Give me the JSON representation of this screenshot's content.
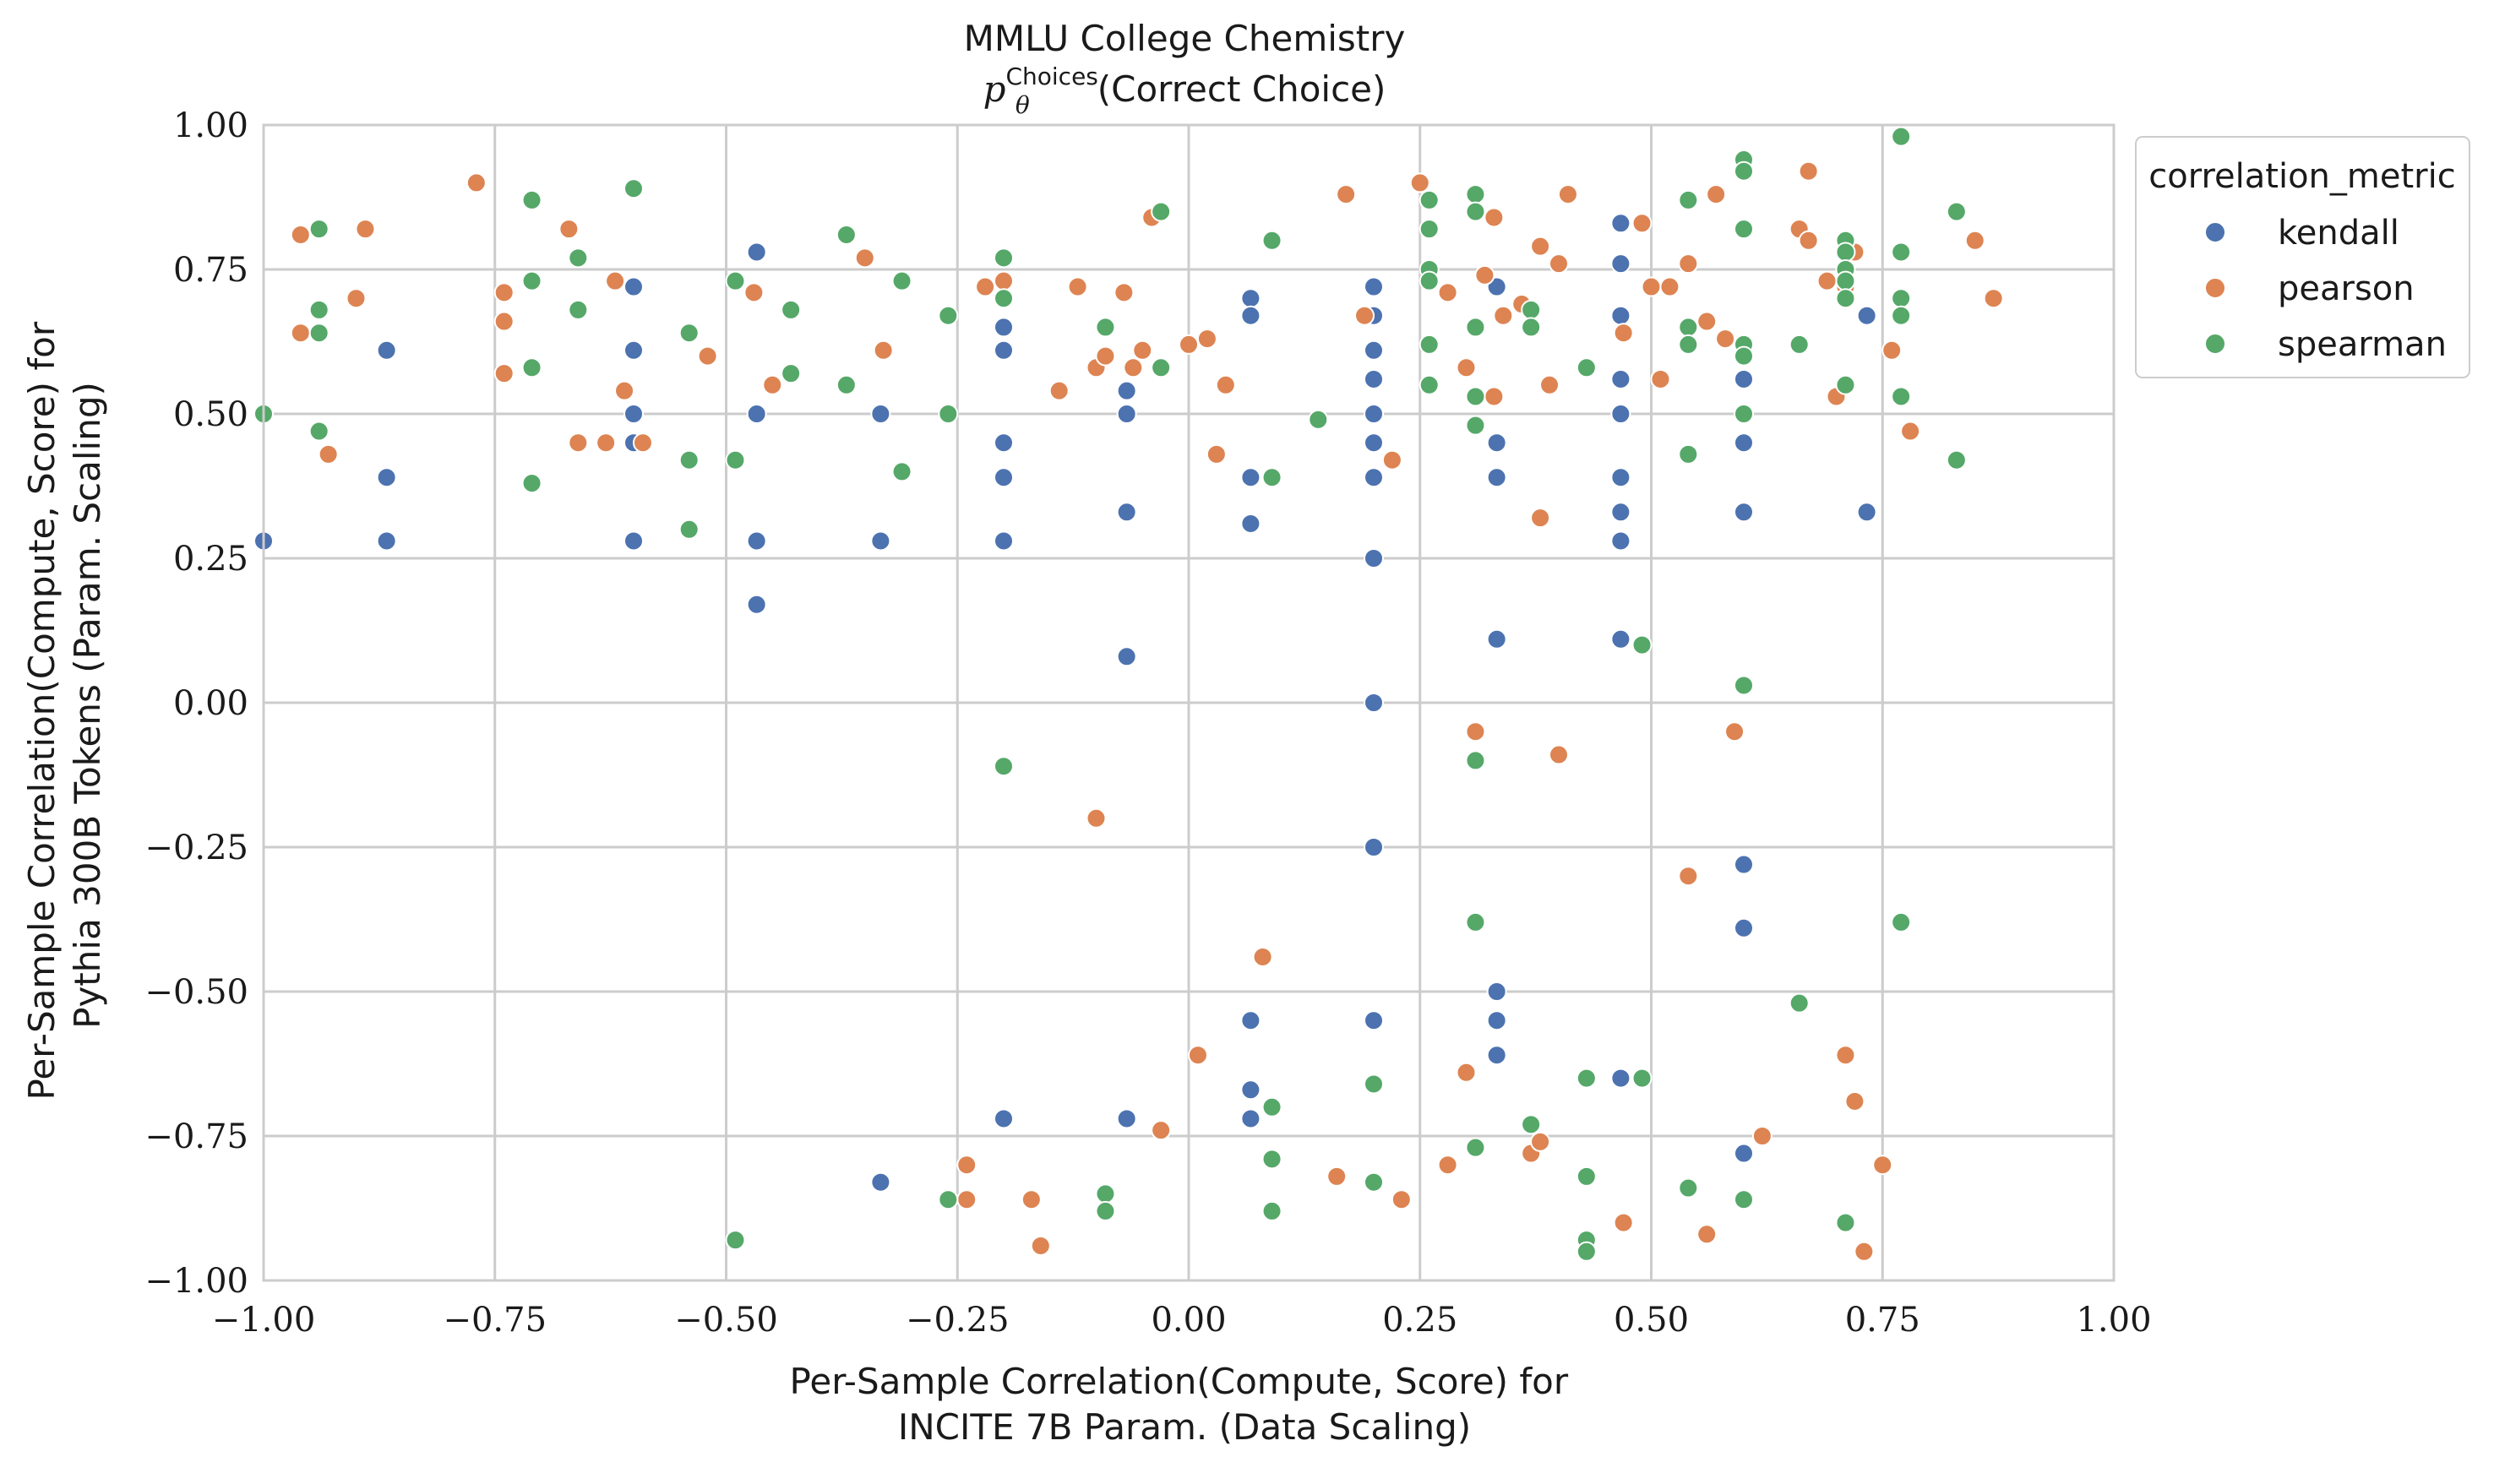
{
  "chart_data": {
    "type": "scatter",
    "title": "MMLU College Chemistry",
    "subtitle_prefix": "p",
    "subtitle_sub": "θ",
    "subtitle_sup": "Choices",
    "subtitle_text": "(Correct Choice)",
    "xlabel": [
      "Per-Sample Correlation(Compute, Score) for",
      "INCITE 7B Param. (Data Scaling)"
    ],
    "ylabel": [
      "Per-Sample Correlation(Compute, Score) for",
      "Pythia 300B Tokens (Param. Scaling)"
    ],
    "xlim": [
      -1.0,
      1.0
    ],
    "ylim": [
      -1.0,
      1.0
    ],
    "xticks": [
      -1.0,
      -0.75,
      -0.5,
      -0.25,
      0.0,
      0.25,
      0.5,
      0.75,
      1.0
    ],
    "yticks": [
      -1.0,
      -0.75,
      -0.5,
      -0.25,
      0.0,
      0.25,
      0.5,
      0.75,
      1.0
    ],
    "xtick_labels": [
      "−1.00",
      "−0.75",
      "−0.50",
      "−0.25",
      "0.00",
      "0.25",
      "0.50",
      "0.75",
      "1.00"
    ],
    "ytick_labels": [
      "−1.00",
      "−0.75",
      "−0.50",
      "−0.25",
      "0.00",
      "0.25",
      "0.50",
      "0.75",
      "1.00"
    ],
    "grid": true,
    "legend": {
      "title": "correlation_metric",
      "placement": "outside-right-top"
    },
    "series": [
      {
        "name": "kendall",
        "color": "#4c72b0",
        "points": [
          [
            -1.0,
            0.28
          ],
          [
            -0.867,
            0.61
          ],
          [
            -0.867,
            0.39
          ],
          [
            -0.867,
            0.28
          ],
          [
            -0.6,
            0.72
          ],
          [
            -0.6,
            0.61
          ],
          [
            -0.6,
            0.5
          ],
          [
            -0.6,
            0.45
          ],
          [
            -0.6,
            0.28
          ],
          [
            -0.467,
            0.78
          ],
          [
            -0.467,
            0.5
          ],
          [
            -0.467,
            0.28
          ],
          [
            -0.467,
            0.17
          ],
          [
            -0.333,
            0.5
          ],
          [
            -0.333,
            0.28
          ],
          [
            -0.333,
            -0.83
          ],
          [
            -0.2,
            0.65
          ],
          [
            -0.2,
            0.61
          ],
          [
            -0.2,
            0.45
          ],
          [
            -0.2,
            0.39
          ],
          [
            -0.2,
            0.28
          ],
          [
            -0.2,
            -0.72
          ],
          [
            -0.067,
            0.54
          ],
          [
            -0.067,
            0.5
          ],
          [
            -0.067,
            0.33
          ],
          [
            -0.067,
            0.08
          ],
          [
            -0.067,
            -0.72
          ],
          [
            0.067,
            0.7
          ],
          [
            0.067,
            0.67
          ],
          [
            0.067,
            0.39
          ],
          [
            0.067,
            0.31
          ],
          [
            0.067,
            -0.55
          ],
          [
            0.067,
            -0.67
          ],
          [
            0.067,
            -0.72
          ],
          [
            0.2,
            0.72
          ],
          [
            0.2,
            0.67
          ],
          [
            0.2,
            0.61
          ],
          [
            0.2,
            0.56
          ],
          [
            0.2,
            0.5
          ],
          [
            0.2,
            0.45
          ],
          [
            0.2,
            0.39
          ],
          [
            0.2,
            0.25
          ],
          [
            0.2,
            0.0
          ],
          [
            0.2,
            -0.25
          ],
          [
            0.2,
            -0.55
          ],
          [
            0.333,
            0.72
          ],
          [
            0.333,
            0.45
          ],
          [
            0.333,
            0.39
          ],
          [
            0.333,
            0.11
          ],
          [
            0.333,
            -0.5
          ],
          [
            0.333,
            -0.55
          ],
          [
            0.333,
            -0.61
          ],
          [
            0.467,
            0.83
          ],
          [
            0.467,
            0.76
          ],
          [
            0.467,
            0.67
          ],
          [
            0.467,
            0.56
          ],
          [
            0.467,
            0.5
          ],
          [
            0.467,
            0.39
          ],
          [
            0.467,
            0.33
          ],
          [
            0.467,
            0.28
          ],
          [
            0.467,
            0.11
          ],
          [
            0.467,
            -0.65
          ],
          [
            0.6,
            0.94
          ],
          [
            0.6,
            0.56
          ],
          [
            0.6,
            0.45
          ],
          [
            0.6,
            0.33
          ],
          [
            0.6,
            -0.28
          ],
          [
            0.6,
            -0.39
          ],
          [
            0.6,
            -0.78
          ],
          [
            0.733,
            0.67
          ],
          [
            0.733,
            0.33
          ]
        ]
      },
      {
        "name": "pearson",
        "color": "#dd8452",
        "points": [
          [
            -0.96,
            0.81
          ],
          [
            -0.96,
            0.64
          ],
          [
            -0.93,
            0.43
          ],
          [
            -0.89,
            0.82
          ],
          [
            -0.9,
            0.7
          ],
          [
            -0.77,
            0.9
          ],
          [
            -0.74,
            0.71
          ],
          [
            -0.74,
            0.66
          ],
          [
            -0.74,
            0.57
          ],
          [
            -0.67,
            0.82
          ],
          [
            -0.66,
            0.45
          ],
          [
            -0.63,
            0.45
          ],
          [
            -0.62,
            0.73
          ],
          [
            -0.61,
            0.54
          ],
          [
            -0.59,
            0.45
          ],
          [
            -0.52,
            0.6
          ],
          [
            -0.47,
            0.71
          ],
          [
            -0.45,
            0.55
          ],
          [
            -0.35,
            0.77
          ],
          [
            -0.33,
            0.61
          ],
          [
            -0.24,
            -0.8
          ],
          [
            -0.24,
            -0.86
          ],
          [
            -0.22,
            0.72
          ],
          [
            -0.2,
            0.73
          ],
          [
            -0.17,
            -0.86
          ],
          [
            -0.16,
            -0.94
          ],
          [
            -0.14,
            0.54
          ],
          [
            -0.12,
            0.72
          ],
          [
            -0.1,
            -0.2
          ],
          [
            -0.1,
            0.58
          ],
          [
            -0.09,
            0.6
          ],
          [
            -0.07,
            0.71
          ],
          [
            -0.06,
            0.58
          ],
          [
            -0.05,
            0.61
          ],
          [
            -0.04,
            0.84
          ],
          [
            -0.03,
            -0.74
          ],
          [
            0.0,
            0.62
          ],
          [
            0.01,
            -0.61
          ],
          [
            0.02,
            0.63
          ],
          [
            0.03,
            0.43
          ],
          [
            0.04,
            0.55
          ],
          [
            0.08,
            -0.44
          ],
          [
            0.16,
            -0.82
          ],
          [
            0.17,
            0.88
          ],
          [
            0.19,
            0.67
          ],
          [
            0.22,
            0.42
          ],
          [
            0.23,
            -0.86
          ],
          [
            0.25,
            0.9
          ],
          [
            0.26,
            0.55
          ],
          [
            0.28,
            0.71
          ],
          [
            0.28,
            -0.8
          ],
          [
            0.3,
            -0.64
          ],
          [
            0.3,
            0.58
          ],
          [
            0.31,
            -0.77
          ],
          [
            0.31,
            -0.05
          ],
          [
            0.32,
            0.74
          ],
          [
            0.33,
            0.53
          ],
          [
            0.33,
            0.84
          ],
          [
            0.34,
            0.67
          ],
          [
            0.36,
            0.69
          ],
          [
            0.37,
            -0.78
          ],
          [
            0.38,
            0.32
          ],
          [
            0.38,
            -0.76
          ],
          [
            0.38,
            0.79
          ],
          [
            0.39,
            0.55
          ],
          [
            0.4,
            0.76
          ],
          [
            0.4,
            -0.09
          ],
          [
            0.41,
            0.88
          ],
          [
            0.47,
            -0.9
          ],
          [
            0.47,
            0.64
          ],
          [
            0.49,
            0.83
          ],
          [
            0.5,
            0.72
          ],
          [
            0.51,
            0.56
          ],
          [
            0.52,
            0.72
          ],
          [
            0.54,
            0.76
          ],
          [
            0.54,
            -0.3
          ],
          [
            0.56,
            0.66
          ],
          [
            0.56,
            -0.92
          ],
          [
            0.57,
            0.88
          ],
          [
            0.58,
            0.63
          ],
          [
            0.59,
            -0.05
          ],
          [
            0.6,
            0.6
          ],
          [
            0.62,
            -0.75
          ],
          [
            0.66,
            0.82
          ],
          [
            0.67,
            0.92
          ],
          [
            0.67,
            0.8
          ],
          [
            0.69,
            0.73
          ],
          [
            0.7,
            0.53
          ],
          [
            0.71,
            0.72
          ],
          [
            0.71,
            -0.61
          ],
          [
            0.72,
            -0.69
          ],
          [
            0.72,
            0.78
          ],
          [
            0.73,
            -0.95
          ],
          [
            0.75,
            -0.8
          ],
          [
            0.76,
            0.61
          ],
          [
            0.78,
            0.47
          ],
          [
            0.85,
            0.8
          ],
          [
            0.87,
            0.7
          ]
        ]
      },
      {
        "name": "spearman",
        "color": "#55a868",
        "points": [
          [
            -1.0,
            0.5
          ],
          [
            -0.94,
            0.82
          ],
          [
            -0.94,
            0.68
          ],
          [
            -0.94,
            0.64
          ],
          [
            -0.94,
            0.47
          ],
          [
            -0.71,
            0.87
          ],
          [
            -0.71,
            0.73
          ],
          [
            -0.71,
            0.58
          ],
          [
            -0.71,
            0.38
          ],
          [
            -0.66,
            0.77
          ],
          [
            -0.66,
            0.68
          ],
          [
            -0.6,
            0.89
          ],
          [
            -0.54,
            0.64
          ],
          [
            -0.54,
            0.42
          ],
          [
            -0.54,
            0.3
          ],
          [
            -0.49,
            0.73
          ],
          [
            -0.49,
            0.42
          ],
          [
            -0.49,
            -0.93
          ],
          [
            -0.43,
            0.68
          ],
          [
            -0.43,
            0.57
          ],
          [
            -0.37,
            0.81
          ],
          [
            -0.37,
            0.55
          ],
          [
            -0.31,
            0.73
          ],
          [
            -0.31,
            0.4
          ],
          [
            -0.26,
            0.67
          ],
          [
            -0.26,
            0.5
          ],
          [
            -0.26,
            -0.86
          ],
          [
            -0.2,
            0.77
          ],
          [
            -0.2,
            0.7
          ],
          [
            -0.2,
            -0.11
          ],
          [
            -0.09,
            0.65
          ],
          [
            -0.09,
            -0.85
          ],
          [
            -0.09,
            -0.88
          ],
          [
            -0.03,
            0.85
          ],
          [
            -0.03,
            0.58
          ],
          [
            0.09,
            0.8
          ],
          [
            0.09,
            0.39
          ],
          [
            0.09,
            -0.7
          ],
          [
            0.09,
            -0.79
          ],
          [
            0.09,
            -0.88
          ],
          [
            0.14,
            0.49
          ],
          [
            0.2,
            -0.66
          ],
          [
            0.2,
            -0.83
          ],
          [
            0.26,
            0.87
          ],
          [
            0.26,
            0.82
          ],
          [
            0.26,
            0.75
          ],
          [
            0.26,
            0.73
          ],
          [
            0.26,
            0.62
          ],
          [
            0.26,
            0.55
          ],
          [
            0.31,
            0.88
          ],
          [
            0.31,
            0.85
          ],
          [
            0.31,
            0.65
          ],
          [
            0.31,
            0.53
          ],
          [
            0.31,
            0.48
          ],
          [
            0.31,
            -0.1
          ],
          [
            0.31,
            -0.38
          ],
          [
            0.31,
            -0.77
          ],
          [
            0.37,
            0.68
          ],
          [
            0.37,
            0.65
          ],
          [
            0.37,
            -0.73
          ],
          [
            0.43,
            0.58
          ],
          [
            0.43,
            -0.65
          ],
          [
            0.43,
            -0.82
          ],
          [
            0.43,
            -0.93
          ],
          [
            0.43,
            -0.95
          ],
          [
            0.49,
            0.1
          ],
          [
            0.49,
            -0.65
          ],
          [
            0.54,
            0.87
          ],
          [
            0.54,
            0.65
          ],
          [
            0.54,
            0.62
          ],
          [
            0.54,
            0.43
          ],
          [
            0.54,
            -0.84
          ],
          [
            0.6,
            0.94
          ],
          [
            0.6,
            0.92
          ],
          [
            0.6,
            0.82
          ],
          [
            0.6,
            0.62
          ],
          [
            0.6,
            0.6
          ],
          [
            0.6,
            0.5
          ],
          [
            0.6,
            0.03
          ],
          [
            0.6,
            -0.86
          ],
          [
            0.66,
            0.62
          ],
          [
            0.66,
            -0.52
          ],
          [
            0.71,
            0.8
          ],
          [
            0.71,
            0.78
          ],
          [
            0.71,
            0.75
          ],
          [
            0.71,
            0.73
          ],
          [
            0.71,
            0.7
          ],
          [
            0.71,
            0.55
          ],
          [
            0.71,
            -0.9
          ],
          [
            0.77,
            0.98
          ],
          [
            0.77,
            0.78
          ],
          [
            0.77,
            0.7
          ],
          [
            0.77,
            0.67
          ],
          [
            0.77,
            0.53
          ],
          [
            0.77,
            -0.38
          ],
          [
            0.83,
            0.85
          ],
          [
            0.83,
            0.42
          ]
        ]
      }
    ]
  }
}
